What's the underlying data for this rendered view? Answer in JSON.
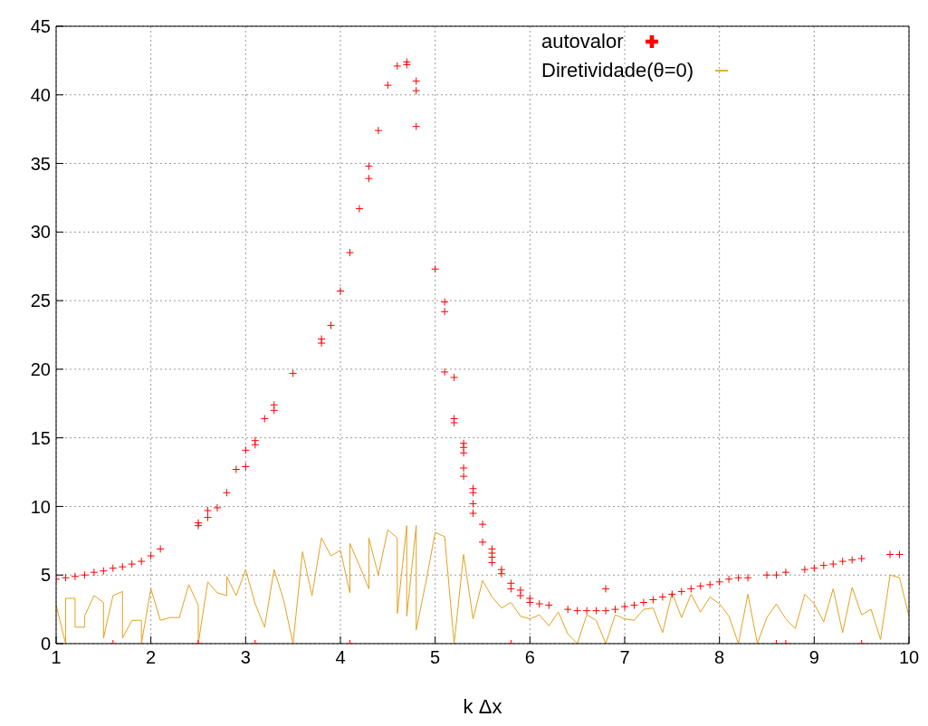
{
  "chart_data": {
    "type": "scatter",
    "xlabel": "k Δx",
    "xlim": [
      1,
      10
    ],
    "xticks": [
      1,
      2,
      3,
      4,
      5,
      6,
      7,
      8,
      9,
      10
    ],
    "ylim": [
      0,
      45
    ],
    "yticks": [
      0,
      5,
      10,
      15,
      20,
      25,
      30,
      35,
      40,
      45
    ],
    "grid": true,
    "legend": "top right",
    "series": [
      {
        "name": "autovalor",
        "marker": "cross",
        "color": "#ff0000",
        "x": [
          1.0,
          1.1,
          1.2,
          1.3,
          1.4,
          1.5,
          1.6,
          1.7,
          1.8,
          1.9,
          2.0,
          2.1,
          2.5,
          2.5,
          2.6,
          2.6,
          2.7,
          2.8,
          2.9,
          3.0,
          3.0,
          3.1,
          3.1,
          3.2,
          3.3,
          3.3,
          3.5,
          3.8,
          3.8,
          3.9,
          4.0,
          4.1,
          4.2,
          4.3,
          4.3,
          4.4,
          4.5,
          4.6,
          4.7,
          4.7,
          4.8,
          4.8,
          4.8,
          5.0,
          5.1,
          5.1,
          5.1,
          5.2,
          5.2,
          5.2,
          5.3,
          5.3,
          5.3,
          5.3,
          5.3,
          5.4,
          5.4,
          5.4,
          5.4,
          5.5,
          5.5,
          5.6,
          5.6,
          5.6,
          5.6,
          5.7,
          5.7,
          5.8,
          5.8,
          5.9,
          5.9,
          6.0,
          6.0,
          6.1,
          6.2,
          6.4,
          6.5,
          6.6,
          6.7,
          6.8,
          6.8,
          6.9,
          7.0,
          7.1,
          7.2,
          7.3,
          7.4,
          7.5,
          7.6,
          7.7,
          7.8,
          7.9,
          8.0,
          8.1,
          8.2,
          8.3,
          8.5,
          8.6,
          8.7,
          8.9,
          9.0,
          9.1,
          9.2,
          9.3,
          9.4,
          9.5,
          9.8,
          9.9,
          1.6,
          2.5,
          3.1,
          4.1,
          5.8,
          8.6,
          8.7,
          9.5
        ],
        "values": [
          4.7,
          4.8,
          4.9,
          5.0,
          5.2,
          5.3,
          5.5,
          5.6,
          5.8,
          6.0,
          6.4,
          6.9,
          8.6,
          8.8,
          9.2,
          9.7,
          9.9,
          11.0,
          12.7,
          12.9,
          14.1,
          14.5,
          14.8,
          16.4,
          17.0,
          17.4,
          19.7,
          21.9,
          22.2,
          23.2,
          25.7,
          28.5,
          31.7,
          33.9,
          34.8,
          37.4,
          40.7,
          42.1,
          42.2,
          42.4,
          41.0,
          40.3,
          37.7,
          27.3,
          24.9,
          24.2,
          19.8,
          19.4,
          16.4,
          16.1,
          14.6,
          14.3,
          13.9,
          12.8,
          12.2,
          11.3,
          11.0,
          10.2,
          9.5,
          8.7,
          7.4,
          6.9,
          6.6,
          6.3,
          5.9,
          5.4,
          5.1,
          4.4,
          4.0,
          3.9,
          3.5,
          3.3,
          3.0,
          2.9,
          2.8,
          2.5,
          2.4,
          2.4,
          2.4,
          2.4,
          4.0,
          2.5,
          2.7,
          2.8,
          3.0,
          3.2,
          3.4,
          3.6,
          3.8,
          4.0,
          4.2,
          4.3,
          4.5,
          4.7,
          4.8,
          4.8,
          5.0,
          5.0,
          5.2,
          5.4,
          5.5,
          5.7,
          5.8,
          6.0,
          6.1,
          6.2,
          6.5,
          6.5,
          0,
          0,
          0,
          0,
          0,
          0,
          0,
          0
        ]
      },
      {
        "name": "Diretividade(θ=0)",
        "type": "line",
        "marker": "none",
        "color": "#e6a020",
        "x": [
          1.0,
          1.1,
          1.1,
          1.2,
          1.2,
          1.3,
          1.3,
          1.4,
          1.5,
          1.5,
          1.6,
          1.7,
          1.7,
          1.8,
          1.9,
          1.9,
          2.0,
          2.1,
          2.2,
          2.3,
          2.4,
          2.5,
          2.5,
          2.6,
          2.7,
          2.8,
          2.8,
          2.9,
          3.0,
          3.1,
          3.2,
          3.3,
          3.4,
          3.5,
          3.6,
          3.7,
          3.8,
          3.9,
          4.0,
          4.1,
          4.1,
          4.2,
          4.3,
          4.3,
          4.4,
          4.5,
          4.6,
          4.6,
          4.7,
          4.7,
          4.8,
          4.8,
          4.9,
          5.0,
          5.1,
          5.2,
          5.3,
          5.4,
          5.5,
          5.6,
          5.7,
          5.8,
          5.9,
          6.0,
          6.1,
          6.2,
          6.3,
          6.4,
          6.5,
          6.6,
          6.7,
          6.8,
          6.9,
          7.0,
          7.1,
          7.2,
          7.3,
          7.4,
          7.5,
          7.6,
          7.7,
          7.8,
          7.9,
          8.0,
          8.1,
          8.2,
          8.3,
          8.4,
          8.5,
          8.6,
          8.7,
          8.8,
          8.9,
          9.0,
          9.1,
          9.2,
          9.3,
          9.4,
          9.5,
          9.6,
          9.7,
          9.8,
          9.9,
          10.0
        ],
        "values": [
          2.8,
          0,
          3.3,
          3.3,
          1.2,
          1.2,
          2.0,
          3.5,
          3.0,
          0.4,
          3.5,
          3.8,
          0.4,
          1.7,
          1.7,
          0,
          4.0,
          1.7,
          1.9,
          1.9,
          4.3,
          2.8,
          0,
          4.5,
          3.7,
          3.5,
          4.9,
          3.5,
          5.4,
          2.9,
          1.2,
          5.4,
          3.2,
          0,
          6.7,
          3.5,
          7.7,
          6.4,
          6.8,
          3.7,
          7.3,
          5.7,
          4.0,
          7.7,
          5.0,
          8.3,
          7.7,
          2.2,
          8.6,
          2.0,
          8.6,
          1.0,
          4.4,
          8.1,
          7.8,
          0,
          6.5,
          1.8,
          4.6,
          3.4,
          2.6,
          3.0,
          2.0,
          1.8,
          2.1,
          1.3,
          2.3,
          0.7,
          0,
          2.1,
          1.7,
          0,
          2.1,
          1.8,
          1.7,
          2.5,
          2.6,
          0.8,
          3.7,
          1.9,
          3.6,
          2.3,
          3.4,
          2.9,
          2.0,
          0,
          3.6,
          0,
          1.9,
          2.9,
          1.8,
          1.1,
          3.6,
          2.9,
          1.6,
          4.0,
          0.8,
          4.1,
          2.1,
          2.5,
          0.3,
          5.0,
          4.8,
          2.0
        ]
      }
    ]
  }
}
